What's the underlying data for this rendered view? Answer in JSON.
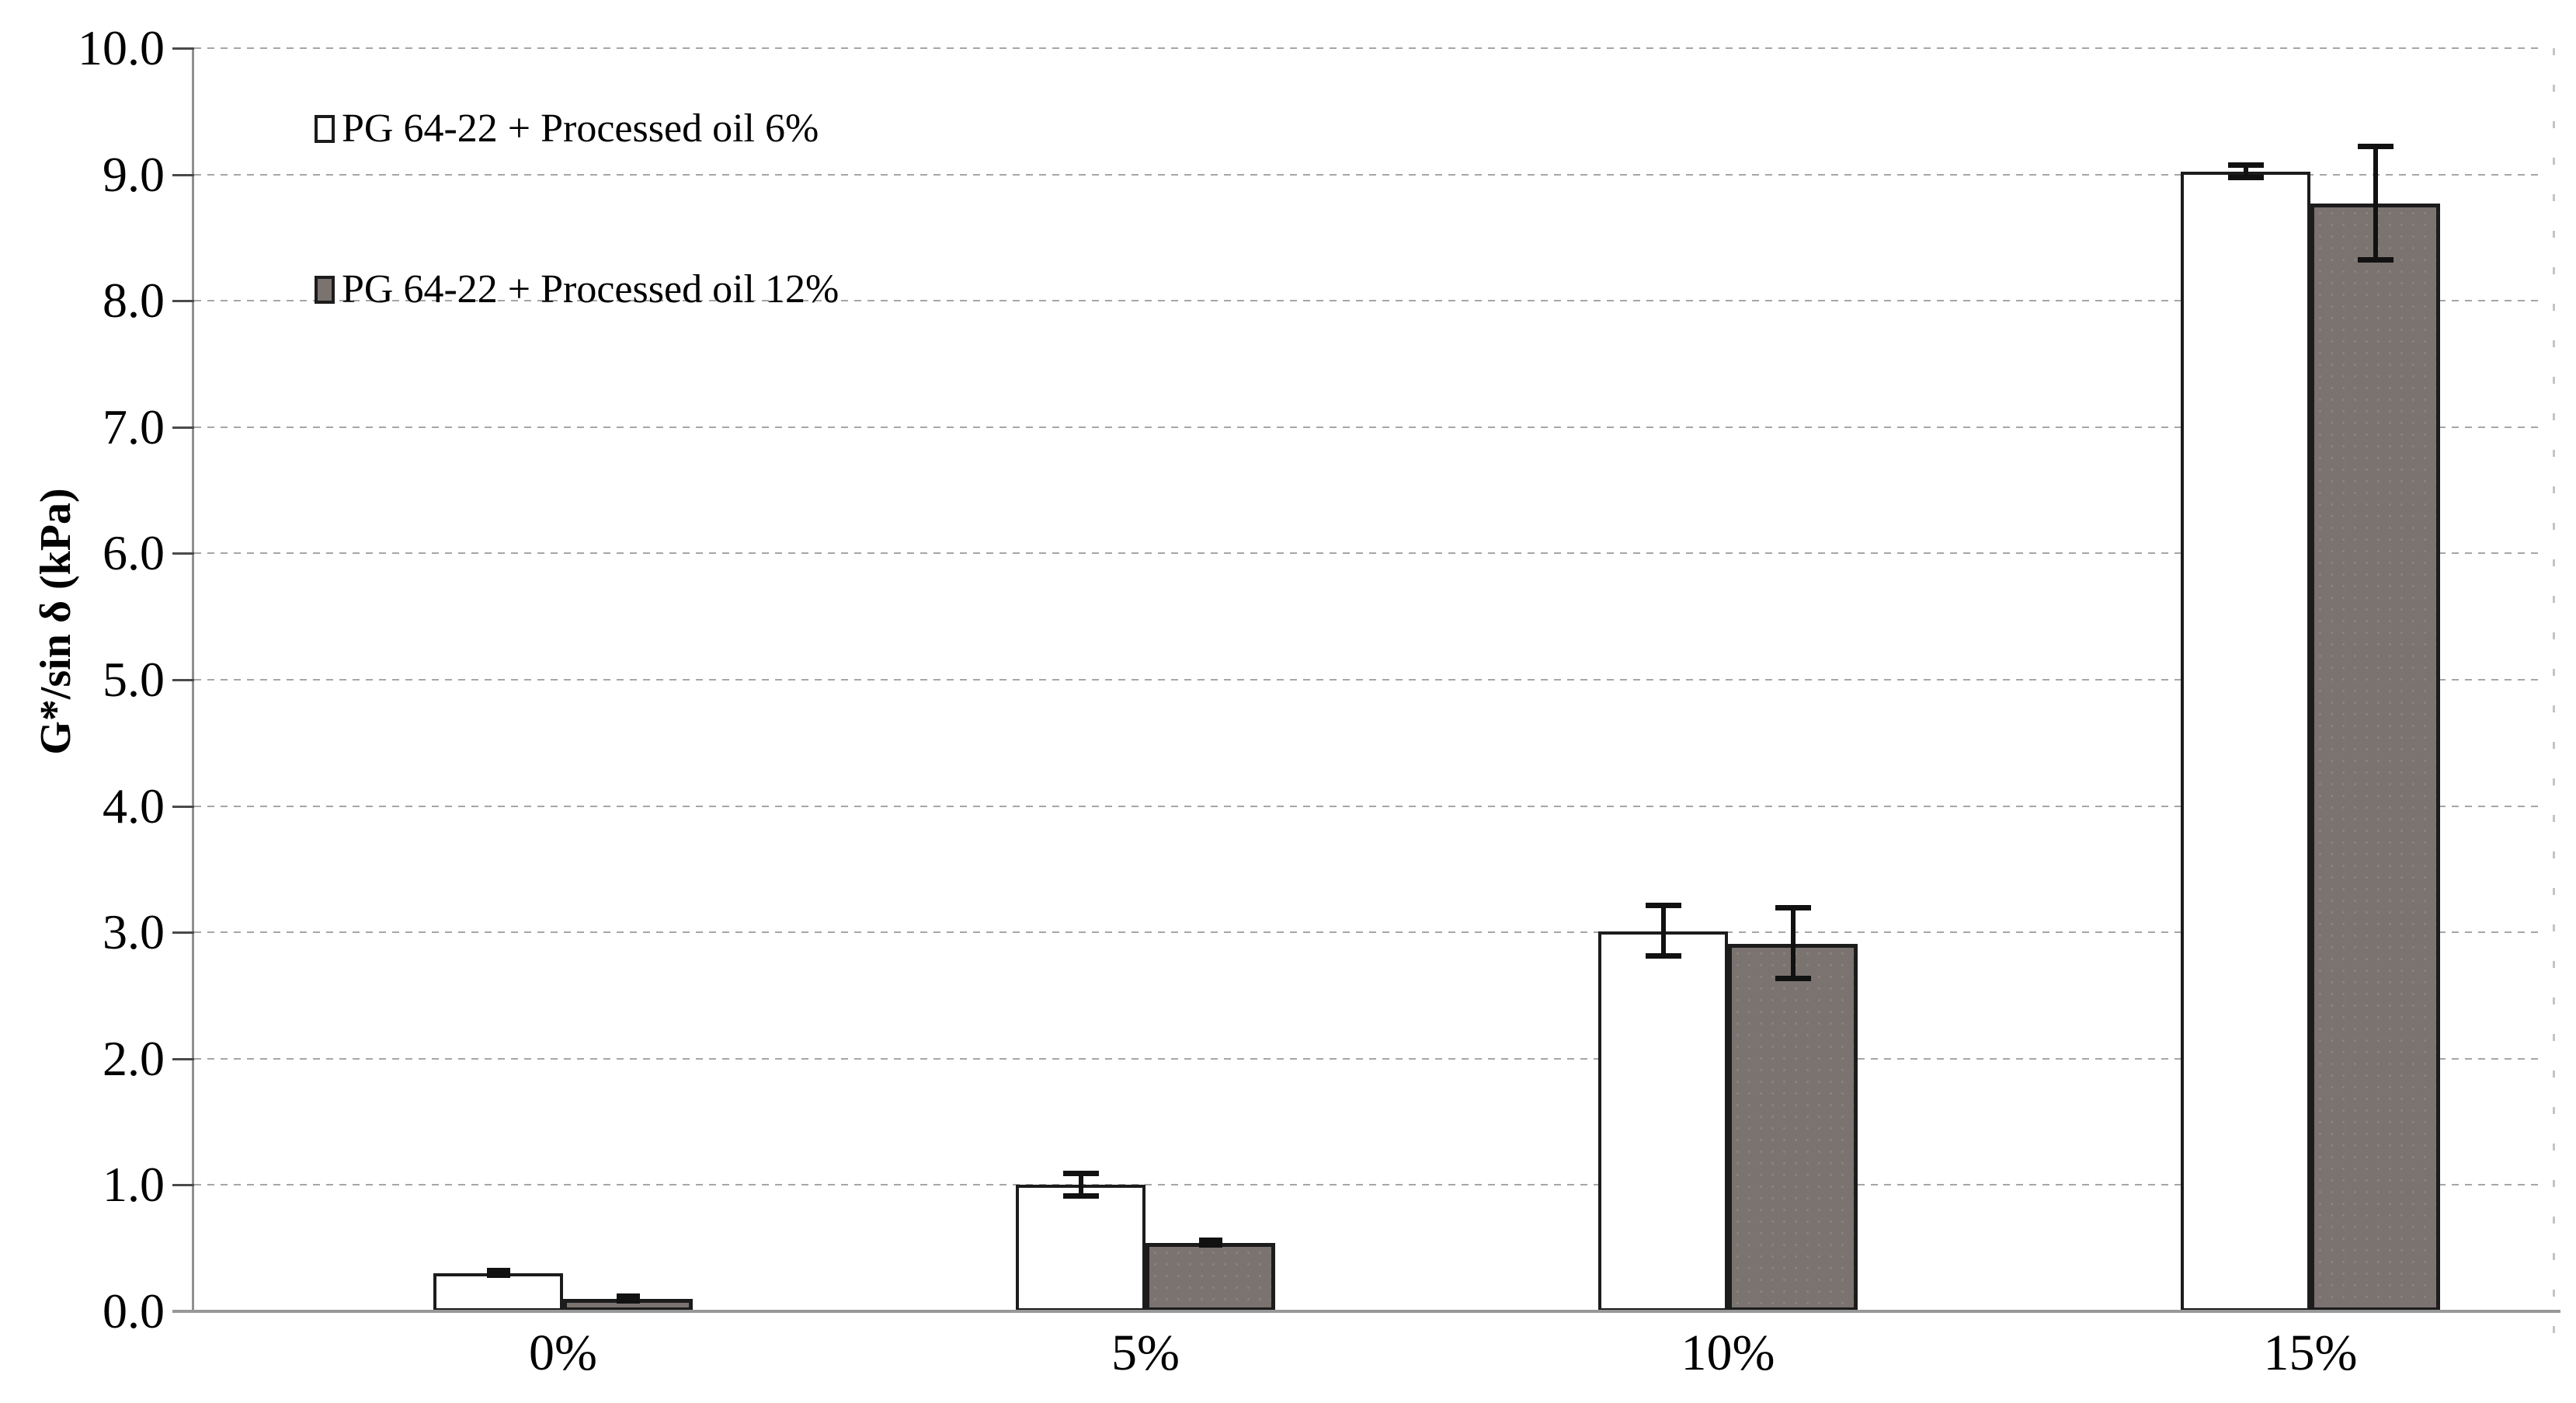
{
  "chart_data": {
    "type": "bar",
    "title": "",
    "xlabel": "",
    "ylabel": "G*/sin δ (kPa)",
    "ylim": [
      0,
      10
    ],
    "y_tick_labels": [
      "0.0",
      "1.0",
      "2.0",
      "3.0",
      "4.0",
      "5.0",
      "6.0",
      "7.0",
      "8.0",
      "9.0",
      "10.0"
    ],
    "grid": "horizontal-dashed",
    "legend_position": "inside-top-left",
    "categories": [
      "0%",
      "5%",
      "10%",
      "15%"
    ],
    "series": [
      {
        "name": "PG 64-22 + Processed oil 6%",
        "fill": "#ffffff",
        "values": [
          0.3,
          1.0,
          3.01,
          9.02
        ],
        "errors": [
          0.02,
          0.09,
          0.2,
          0.05
        ]
      },
      {
        "name": "PG 64-22 + Processed oil 12%",
        "fill": "#7b7370",
        "values": [
          0.1,
          0.54,
          2.91,
          8.77
        ],
        "errors": [
          0.02,
          0.02,
          0.28,
          0.45
        ]
      }
    ],
    "colors": {
      "bar_outline": "#1c1c1c",
      "axis_line": "#8f8f8f",
      "gridline": "#a6a6a6",
      "error_bar": "#111111",
      "text": "#000000"
    }
  }
}
